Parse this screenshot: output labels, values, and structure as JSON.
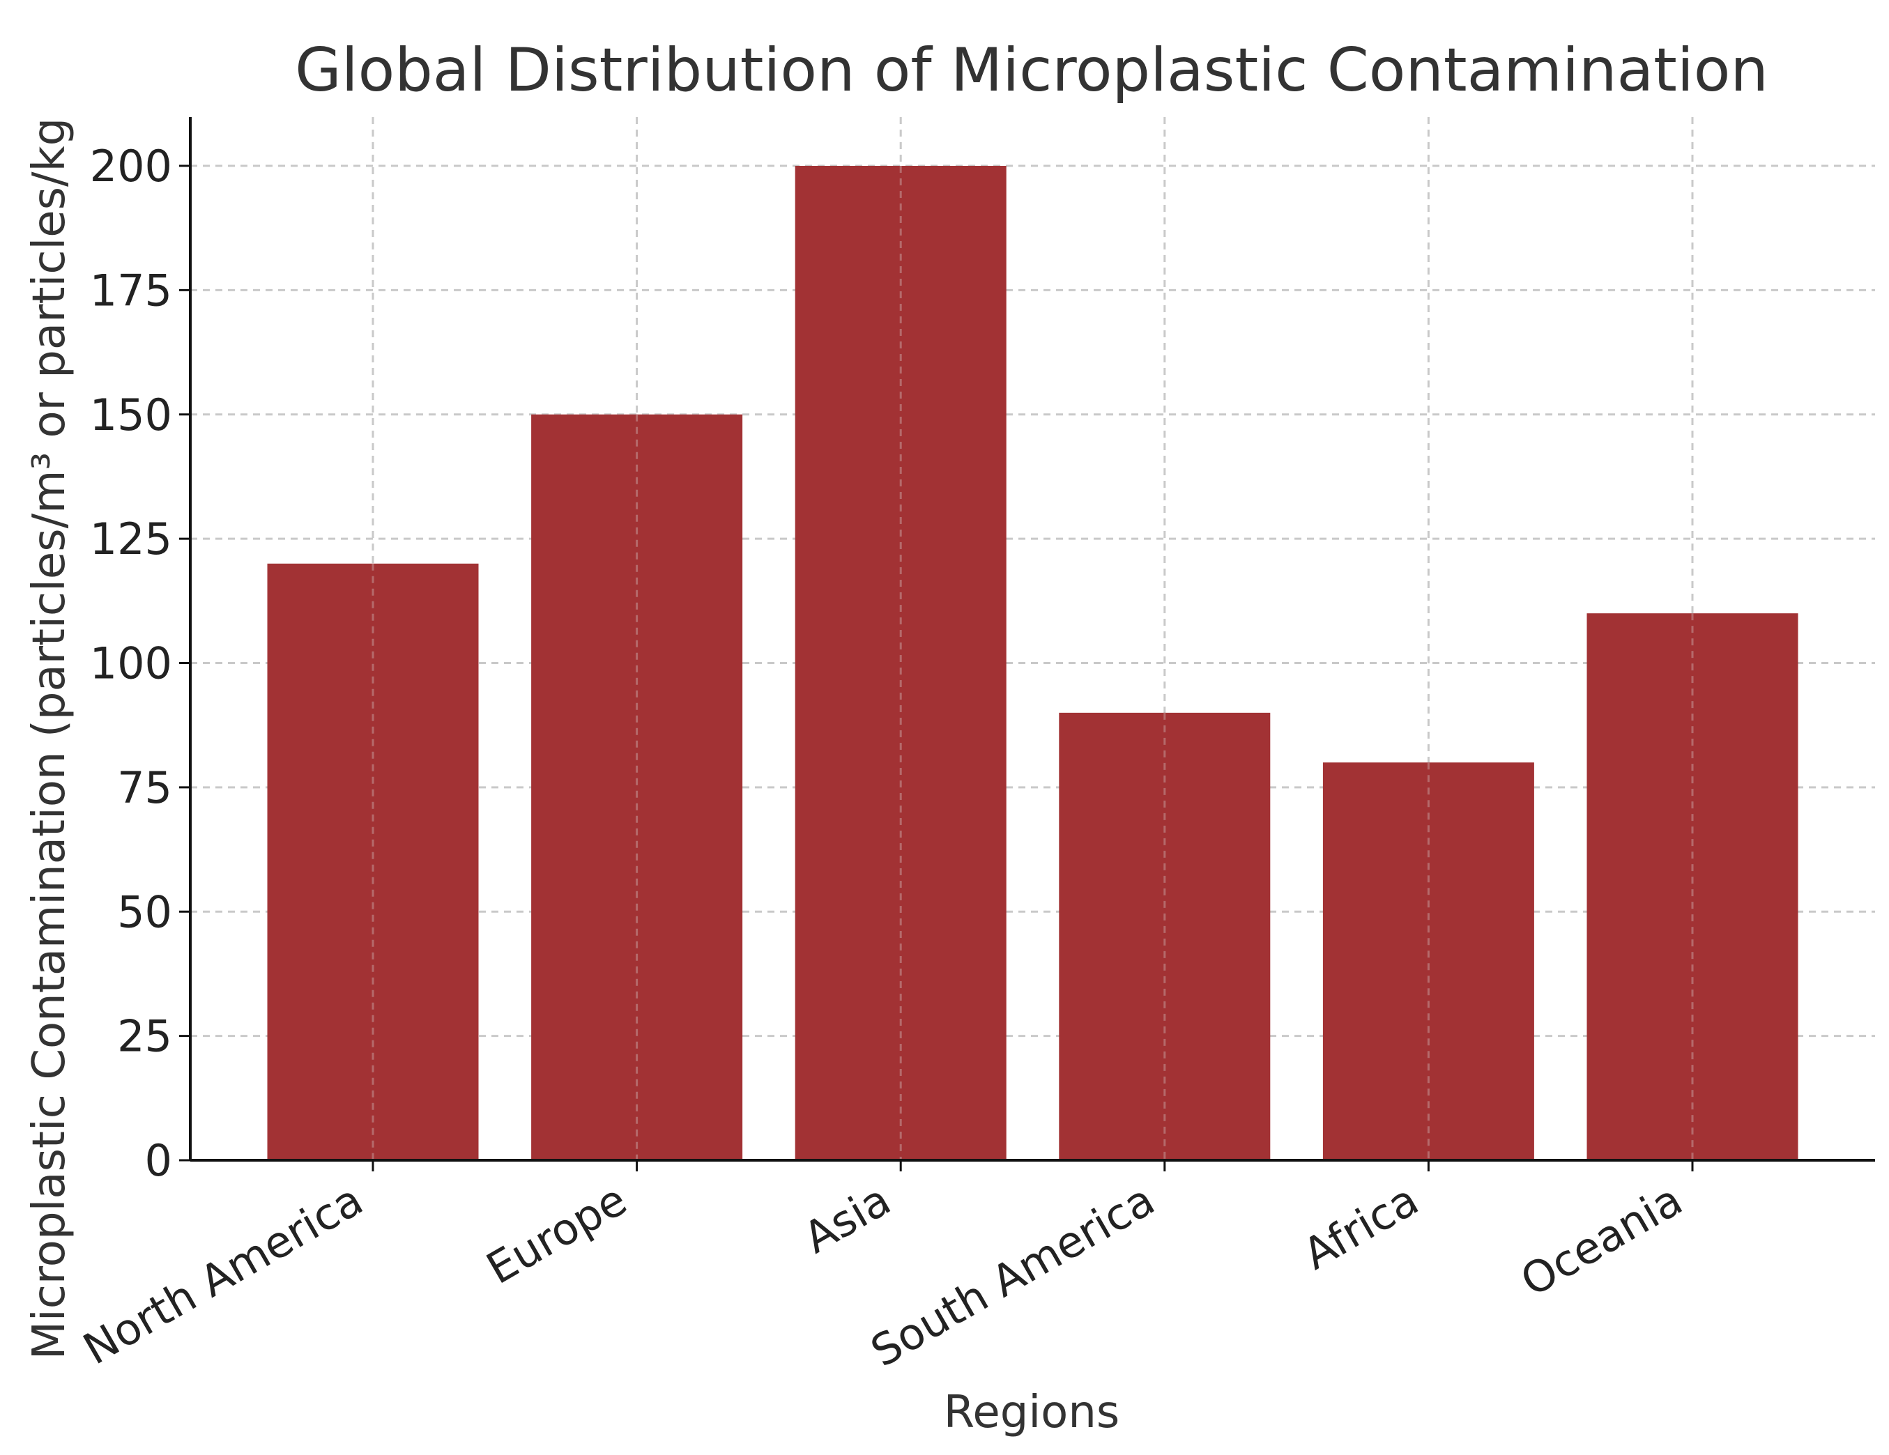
{
  "chart_data": {
    "type": "bar",
    "title": "Global Distribution of Microplastic Contamination",
    "xlabel": "Regions",
    "ylabel": "Microplastic Contamination (particles/m³ or particles/kg",
    "categories": [
      "North America",
      "Europe",
      "Asia",
      "South America",
      "Africa",
      "Oceania"
    ],
    "values": [
      120,
      150,
      200,
      90,
      80,
      110
    ],
    "ylim": [
      0,
      210
    ],
    "yticks": [
      0,
      25,
      50,
      75,
      100,
      125,
      150,
      175,
      200
    ],
    "ytick_labels": [
      "0",
      "25",
      "50",
      "75",
      "100",
      "125",
      "150",
      "175",
      "200"
    ],
    "grid": true,
    "bar_color": "#a23234"
  }
}
